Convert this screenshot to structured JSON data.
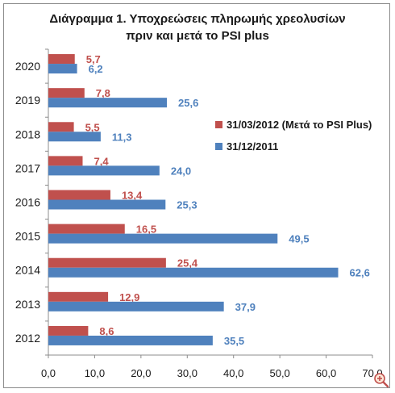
{
  "chart_data": {
    "type": "bar",
    "orientation": "horizontal",
    "title_line1": "Διάγραμμα 1. Υποχρεώσεις πληρωμής χρεολυσίων",
    "title_line2": "πριν και μετά το PSI plus",
    "categories": [
      "2020",
      "2019",
      "2018",
      "2017",
      "2016",
      "2015",
      "2014",
      "2013",
      "2012"
    ],
    "series": [
      {
        "name": "31/03/2012 (Μετά το PSI Plus)",
        "color": "#c0504d",
        "values": [
          5.7,
          7.8,
          5.5,
          7.4,
          13.4,
          16.5,
          25.4,
          12.9,
          8.6
        ],
        "labels": [
          "5,7",
          "7,8",
          "5,5",
          "7,4",
          "13,4",
          "16,5",
          "25,4",
          "12,9",
          "8,6"
        ]
      },
      {
        "name": "31/12/2011",
        "color": "#4f81bd",
        "values": [
          6.2,
          25.6,
          11.3,
          24.0,
          25.3,
          49.5,
          62.6,
          37.9,
          35.5
        ],
        "labels": [
          "6,2",
          "25,6",
          "11,3",
          "24,0",
          "25,3",
          "49,5",
          "62,6",
          "37,9",
          "35,5"
        ]
      }
    ],
    "xlim": [
      0,
      70
    ],
    "xticks": [
      0,
      10,
      20,
      30,
      40,
      50,
      60,
      70
    ],
    "xtick_labels": [
      "0,0",
      "10,0",
      "20,0",
      "30,0",
      "40,0",
      "50,0",
      "60,0",
      "70,0"
    ],
    "grid": false,
    "legend_position": "right"
  },
  "icons": {
    "zoom": "magnifier-plus-icon"
  }
}
